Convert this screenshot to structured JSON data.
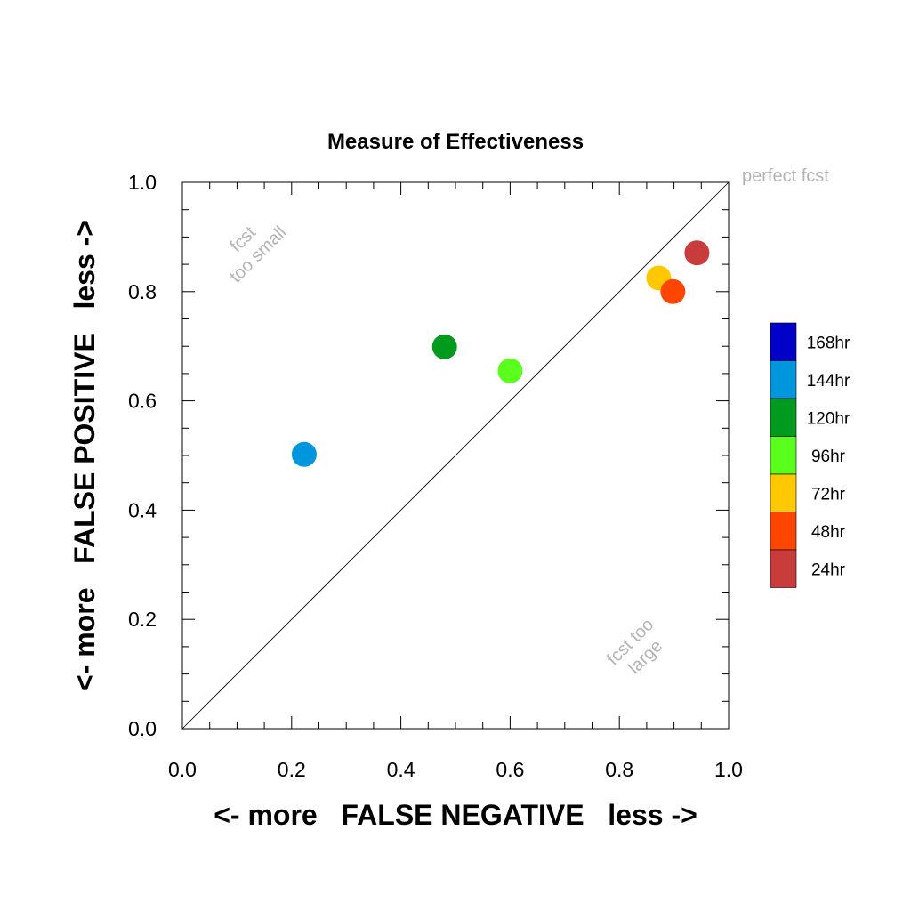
{
  "chart_data": {
    "type": "scatter",
    "title": "Measure of Effectiveness",
    "xlabel": "<- more   FALSE NEGATIVE   less ->",
    "ylabel": "<- more   FALSE POSITIVE   less ->",
    "xlim": [
      0.0,
      1.0
    ],
    "ylim": [
      0.0,
      1.0
    ],
    "xticks": [
      "0.0",
      "0.2",
      "0.4",
      "0.6",
      "0.8",
      "1.0"
    ],
    "yticks": [
      "0.0",
      "0.2",
      "0.4",
      "0.6",
      "0.8",
      "1.0"
    ],
    "grid": false,
    "reference_line": {
      "from": [
        0,
        0
      ],
      "to": [
        1,
        1
      ]
    },
    "annotations": {
      "perfect": "perfect fcst",
      "too_small_1": "fcst",
      "too_small_2": "too small",
      "too_large_1": "fcst too",
      "too_large_2": "large"
    },
    "series": [
      {
        "name": "144hr",
        "color": "#0096dc",
        "x": 0.223,
        "y": 0.502
      },
      {
        "name": "120hr",
        "color": "#009a1e",
        "x": 0.48,
        "y": 0.699
      },
      {
        "name": "96hr",
        "color": "#5aff1e",
        "x": 0.6,
        "y": 0.655
      },
      {
        "name": "72hr",
        "color": "#ffc800",
        "x": 0.872,
        "y": 0.825
      },
      {
        "name": "48hr",
        "color": "#ff4600",
        "x": 0.898,
        "y": 0.8
      },
      {
        "name": "24hr",
        "color": "#c83c3c",
        "x": 0.942,
        "y": 0.871
      }
    ],
    "legend": {
      "placement": "right",
      "entries": [
        {
          "label": "168hr",
          "color": "#0000c8"
        },
        {
          "label": "144hr",
          "color": "#0096dc"
        },
        {
          "label": "120hr",
          "color": "#009a1e"
        },
        {
          "label": "96hr",
          "color": "#5aff1e"
        },
        {
          "label": "72hr",
          "color": "#ffc800"
        },
        {
          "label": "48hr",
          "color": "#ff4600"
        },
        {
          "label": "24hr",
          "color": "#c83c3c"
        }
      ]
    }
  }
}
